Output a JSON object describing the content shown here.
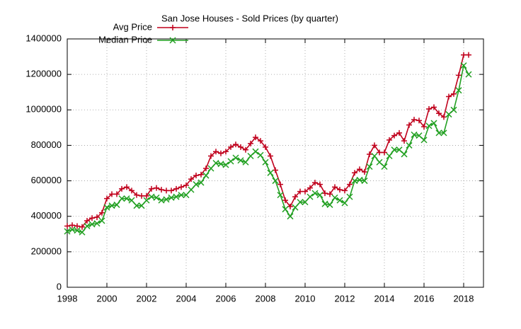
{
  "chart_data": {
    "type": "line",
    "title": "San Jose Houses - Sold Prices (by quarter)",
    "x": [
      1998,
      1998.25,
      1998.5,
      1998.75,
      1999,
      1999.25,
      1999.5,
      1999.75,
      2000,
      2000.25,
      2000.5,
      2000.75,
      2001,
      2001.25,
      2001.5,
      2001.75,
      2002,
      2002.25,
      2002.5,
      2002.75,
      2003,
      2003.25,
      2003.5,
      2003.75,
      2004,
      2004.25,
      2004.5,
      2004.75,
      2005,
      2005.25,
      2005.5,
      2005.75,
      2006,
      2006.25,
      2006.5,
      2006.75,
      2007,
      2007.25,
      2007.5,
      2007.75,
      2008,
      2008.25,
      2008.5,
      2008.75,
      2009,
      2009.25,
      2009.5,
      2009.75,
      2010,
      2010.25,
      2010.5,
      2010.75,
      2011,
      2011.25,
      2011.5,
      2011.75,
      2012,
      2012.25,
      2012.5,
      2012.75,
      2013,
      2013.25,
      2013.5,
      2013.75,
      2014,
      2014.25,
      2014.5,
      2014.75,
      2015,
      2015.25,
      2015.5,
      2015.75,
      2016,
      2016.25,
      2016.5,
      2016.75,
      2017,
      2017.25,
      2017.5,
      2017.75,
      2018,
      2018.25
    ],
    "series": [
      {
        "name": "Avg Price",
        "color": "#c0001c",
        "marker": "plus",
        "values": [
          345000,
          350000,
          345000,
          340000,
          375000,
          390000,
          395000,
          420000,
          500000,
          525000,
          525000,
          555000,
          565000,
          545000,
          520000,
          515000,
          515000,
          555000,
          560000,
          550000,
          545000,
          545000,
          555000,
          565000,
          575000,
          610000,
          630000,
          635000,
          670000,
          740000,
          765000,
          755000,
          765000,
          790000,
          805000,
          790000,
          775000,
          810000,
          845000,
          825000,
          790000,
          740000,
          660000,
          580000,
          490000,
          455000,
          510000,
          540000,
          540000,
          560000,
          590000,
          580000,
          530000,
          525000,
          565000,
          550000,
          545000,
          580000,
          645000,
          665000,
          650000,
          750000,
          800000,
          760000,
          760000,
          830000,
          855000,
          870000,
          825000,
          915000,
          945000,
          940000,
          905000,
          1005000,
          1015000,
          980000,
          960000,
          1075000,
          1090000,
          1195000,
          1310000,
          1310000
        ]
      },
      {
        "name": "Median Price",
        "color": "#22a022",
        "marker": "cross",
        "values": [
          315000,
          325000,
          320000,
          310000,
          345000,
          355000,
          360000,
          375000,
          450000,
          460000,
          465000,
          500000,
          500000,
          490000,
          460000,
          460000,
          490000,
          510000,
          505000,
          490000,
          495000,
          505000,
          510000,
          520000,
          520000,
          550000,
          580000,
          590000,
          630000,
          670000,
          700000,
          695000,
          690000,
          710000,
          730000,
          715000,
          705000,
          740000,
          765000,
          745000,
          705000,
          645000,
          600000,
          520000,
          440000,
          400000,
          450000,
          480000,
          480000,
          510000,
          530000,
          520000,
          470000,
          465000,
          505000,
          490000,
          475000,
          510000,
          600000,
          605000,
          600000,
          680000,
          740000,
          705000,
          680000,
          740000,
          775000,
          775000,
          750000,
          800000,
          860000,
          855000,
          830000,
          910000,
          925000,
          870000,
          870000,
          975000,
          1000000,
          1110000,
          1250000,
          1200000
        ]
      }
    ],
    "xlim": [
      1998,
      2019
    ],
    "xticks": [
      1998,
      2000,
      2002,
      2004,
      2006,
      2008,
      2010,
      2012,
      2014,
      2016,
      2018
    ],
    "ylim": [
      0,
      1400000
    ],
    "yticks": [
      0,
      200000,
      400000,
      600000,
      800000,
      1000000,
      1200000,
      1400000
    ],
    "grid": true,
    "legend": "top-left"
  }
}
